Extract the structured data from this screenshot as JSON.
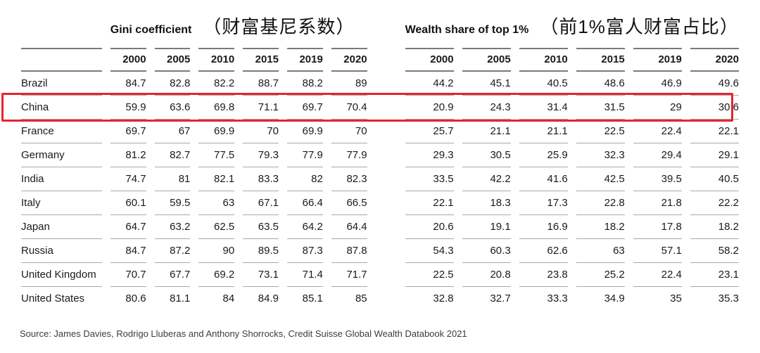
{
  "style": {
    "highlight_red": "#e6252b",
    "header_line_color": "#7a7a7a",
    "row_line_color": "#a8a8a8",
    "text_color": "#1a1a1a"
  },
  "table": {
    "groups": [
      {
        "title_en": "Gini coefficient",
        "title_zh": "（财富基尼系数）",
        "years": [
          "2000",
          "2005",
          "2010",
          "2015",
          "2019",
          "2020"
        ]
      },
      {
        "title_en": "Wealth share of top 1%",
        "title_zh": "（前1%富人财富占比）",
        "years": [
          "2000",
          "2005",
          "2010",
          "2015",
          "2019",
          "2020"
        ]
      }
    ],
    "rows": [
      {
        "country": "Brazil",
        "highlight": false,
        "gini": [
          "84.7",
          "82.8",
          "82.2",
          "88.7",
          "88.2",
          "89"
        ],
        "wealth": [
          "44.2",
          "45.1",
          "40.5",
          "48.6",
          "46.9",
          "49.6"
        ]
      },
      {
        "country": "China",
        "highlight": true,
        "gini": [
          "59.9",
          "63.6",
          "69.8",
          "71.1",
          "69.7",
          "70.4"
        ],
        "wealth": [
          "20.9",
          "24.3",
          "31.4",
          "31.5",
          "29",
          "30.6"
        ]
      },
      {
        "country": "France",
        "highlight": false,
        "gini": [
          "69.7",
          "67",
          "69.9",
          "70",
          "69.9",
          "70"
        ],
        "wealth": [
          "25.7",
          "21.1",
          "21.1",
          "22.5",
          "22.4",
          "22.1"
        ]
      },
      {
        "country": "Germany",
        "highlight": false,
        "gini": [
          "81.2",
          "82.7",
          "77.5",
          "79.3",
          "77.9",
          "77.9"
        ],
        "wealth": [
          "29.3",
          "30.5",
          "25.9",
          "32.3",
          "29.4",
          "29.1"
        ]
      },
      {
        "country": "India",
        "highlight": false,
        "gini": [
          "74.7",
          "81",
          "82.1",
          "83.3",
          "82",
          "82.3"
        ],
        "wealth": [
          "33.5",
          "42.2",
          "41.6",
          "42.5",
          "39.5",
          "40.5"
        ]
      },
      {
        "country": "Italy",
        "highlight": false,
        "gini": [
          "60.1",
          "59.5",
          "63",
          "67.1",
          "66.4",
          "66.5"
        ],
        "wealth": [
          "22.1",
          "18.3",
          "17.3",
          "22.8",
          "21.8",
          "22.2"
        ]
      },
      {
        "country": "Japan",
        "highlight": false,
        "gini": [
          "64.7",
          "63.2",
          "62.5",
          "63.5",
          "64.2",
          "64.4"
        ],
        "wealth": [
          "20.6",
          "19.1",
          "16.9",
          "18.2",
          "17.8",
          "18.2"
        ]
      },
      {
        "country": "Russia",
        "highlight": false,
        "gini": [
          "84.7",
          "87.2",
          "90",
          "89.5",
          "87.3",
          "87.8"
        ],
        "wealth": [
          "54.3",
          "60.3",
          "62.6",
          "63",
          "57.1",
          "58.2"
        ]
      },
      {
        "country": "United Kingdom",
        "highlight": false,
        "gini": [
          "70.7",
          "67.7",
          "69.2",
          "73.1",
          "71.4",
          "71.7"
        ],
        "wealth": [
          "22.5",
          "20.8",
          "23.8",
          "25.2",
          "22.4",
          "23.1"
        ]
      },
      {
        "country": "United States",
        "highlight": false,
        "gini": [
          "80.6",
          "81.1",
          "84",
          "84.9",
          "85.1",
          "85"
        ],
        "wealth": [
          "32.8",
          "32.7",
          "33.3",
          "34.9",
          "35",
          "35.3"
        ]
      }
    ]
  },
  "source": "Source: James Davies, Rodrigo Lluberas and Anthony Shorrocks, Credit Suisse Global Wealth Databook 2021"
}
